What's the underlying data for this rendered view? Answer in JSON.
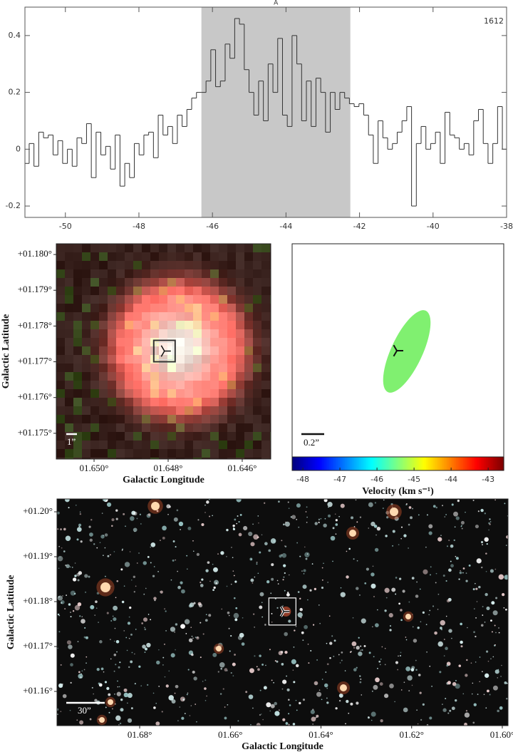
{
  "chart_data": [
    {
      "type": "line",
      "step": true,
      "color": "#333333",
      "x": [
        -51.05,
        -50.92,
        -50.79,
        -50.66,
        -50.53,
        -50.4,
        -50.27,
        -50.14,
        -50.01,
        -49.88,
        -49.75,
        -49.62,
        -49.49,
        -49.36,
        -49.23,
        -49.1,
        -48.97,
        -48.84,
        -48.71,
        -48.58,
        -48.45,
        -48.32,
        -48.19,
        -48.06,
        -47.93,
        -47.8,
        -47.67,
        -47.54,
        -47.41,
        -47.28,
        -47.15,
        -47.02,
        -46.89,
        -46.76,
        -46.63,
        -46.5,
        -46.37,
        -46.24,
        -46.11,
        -45.98,
        -45.85,
        -45.72,
        -45.59,
        -45.46,
        -45.33,
        -45.2,
        -45.07,
        -44.94,
        -44.81,
        -44.68,
        -44.55,
        -44.42,
        -44.29,
        -44.16,
        -44.03,
        -43.9,
        -43.77,
        -43.64,
        -43.51,
        -43.38,
        -43.25,
        -43.12,
        -42.99,
        -42.86,
        -42.73,
        -42.6,
        -42.47,
        -42.34,
        -42.21,
        -42.08,
        -41.95,
        -41.82,
        -41.69,
        -41.56,
        -41.43,
        -41.3,
        -41.17,
        -41.04,
        -40.91,
        -40.78,
        -40.65,
        -40.52,
        -40.39,
        -40.26,
        -40.13,
        -40.0,
        -39.87,
        -39.74,
        -39.61,
        -39.48,
        -39.35,
        -39.22,
        -39.09,
        -38.96,
        -38.83,
        -38.7,
        -38.57,
        -38.44,
        -38.31,
        -38.18,
        -38.05
      ],
      "values": [
        -0.05,
        0.02,
        -0.06,
        0.06,
        0.04,
        0.05,
        -0.02,
        0.03,
        -0.05,
        0.0,
        -0.06,
        0.04,
        0.02,
        0.09,
        -0.1,
        0.06,
        -0.02,
        0.01,
        -0.07,
        0.05,
        -0.13,
        -0.05,
        -0.1,
        0.02,
        -0.02,
        0.05,
        0.06,
        -0.03,
        0.12,
        0.05,
        0.08,
        0.02,
        0.12,
        0.08,
        0.14,
        0.18,
        0.2,
        0.2,
        0.24,
        0.35,
        0.22,
        0.24,
        0.37,
        0.32,
        0.46,
        0.44,
        0.28,
        0.2,
        0.12,
        0.24,
        0.1,
        0.3,
        0.2,
        0.39,
        0.12,
        0.08,
        0.4,
        0.3,
        0.1,
        0.24,
        0.08,
        0.25,
        0.2,
        0.06,
        0.2,
        0.14,
        0.2,
        0.18,
        0.16,
        0.15,
        0.16,
        0.12,
        0.05,
        -0.05,
        0.1,
        0.04,
        0.0,
        0.02,
        0.06,
        0.1,
        0.15,
        -0.2,
        0.02,
        0.08,
        0.0,
        0.02,
        0.06,
        -0.05,
        0.13,
        0.05,
        0.04,
        0.0,
        0.02,
        -0.02,
        0.1,
        0.14,
        0.02,
        -0.05,
        0.02,
        0.15,
        0.0
      ],
      "xlim": [
        -51.1,
        -38
      ],
      "ylim": [
        -0.24,
        0.5
      ],
      "xticks": [
        -50,
        -48,
        -46,
        -44,
        -42,
        -40,
        -38
      ],
      "yticks": [
        -0.2,
        0,
        0.2,
        0.4
      ],
      "shade": {
        "range": [
          -46.3,
          -42.25
        ],
        "label": "A",
        "color": "#c8c8c8"
      },
      "annotation": "1612"
    },
    {
      "type": "image",
      "render": "zoom",
      "xlabel": "Galactic Longitude",
      "ylabel": "Galactic Latitude",
      "xlim": [
        1.65102,
        1.64523
      ],
      "ylim": [
        1.17428,
        1.1803
      ],
      "xticks": [
        {
          "value": 1.65,
          "label": "01.650°"
        },
        {
          "value": 1.648,
          "label": "01.648°"
        },
        {
          "value": 1.646,
          "label": "01.646°"
        }
      ],
      "yticks": [
        {
          "value": 1.18,
          "label": "+01.180°"
        },
        {
          "value": 1.179,
          "label": "+01.179°"
        },
        {
          "value": 1.178,
          "label": "+01.178°"
        },
        {
          "value": 1.177,
          "label": "+01.177°"
        },
        {
          "value": 1.176,
          "label": "+01.176°"
        },
        {
          "value": 1.175,
          "label": "+01.175°"
        }
      ],
      "target": {
        "x": 1.6481,
        "y": 1.1773
      },
      "scalebar": "1”"
    },
    {
      "type": "maser",
      "spot_color": "#80f070",
      "scalebar": "0.2”",
      "colorbar": {
        "label": "Velocity (km s⁻¹)",
        "colormap": "jet",
        "lim": [
          -48.29,
          -42.58
        ],
        "ticks": [
          -48,
          -47,
          -46,
          -45,
          -44,
          -43
        ]
      }
    },
    {
      "type": "image",
      "render": "field",
      "xlabel": "Galactic Longitude",
      "ylabel": "Galactic Latitude",
      "xlim": [
        1.69824,
        1.59874
      ],
      "ylim": [
        1.15238,
        1.20286
      ],
      "xticks": [
        {
          "value": 1.68,
          "label": "01.68°"
        },
        {
          "value": 1.66,
          "label": "01.66°"
        },
        {
          "value": 1.64,
          "label": "01.64°"
        },
        {
          "value": 1.62,
          "label": "01.62°"
        },
        {
          "value": 1.6,
          "label": "01.60°"
        }
      ],
      "yticks": [
        {
          "value": 1.2,
          "label": "+01.20°"
        },
        {
          "value": 1.19,
          "label": "+01.19°"
        },
        {
          "value": 1.18,
          "label": "+01.18°"
        },
        {
          "value": 1.17,
          "label": "+01.17°"
        },
        {
          "value": 1.16,
          "label": "+01.16°"
        }
      ],
      "target": {
        "x": 1.6482,
        "y": 1.1778
      },
      "scalebar": "30”"
    }
  ]
}
